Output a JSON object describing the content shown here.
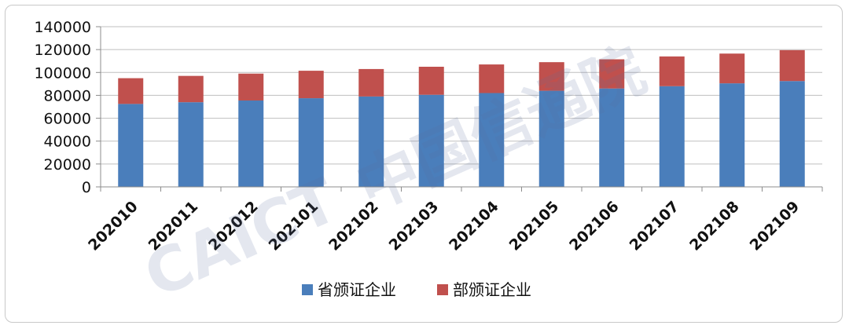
{
  "chart_data": {
    "type": "bar",
    "stacked": true,
    "categories": [
      "202010",
      "202011",
      "202012",
      "202101",
      "202102",
      "202103",
      "202104",
      "202105",
      "202106",
      "202107",
      "202108",
      "202109"
    ],
    "series": [
      {
        "name": "省颁证企业",
        "color": "#4a7ebb",
        "values": [
          72500,
          74000,
          75500,
          77500,
          79000,
          80500,
          82000,
          84000,
          86000,
          88000,
          90500,
          92500
        ]
      },
      {
        "name": "部颁证企业",
        "color": "#c0504d",
        "values": [
          22500,
          23000,
          23500,
          24000,
          24000,
          24500,
          25000,
          25000,
          25500,
          26000,
          26000,
          27000
        ]
      }
    ],
    "yticks": [
      "0",
      "20000",
      "40000",
      "60000",
      "80000",
      "100000",
      "120000",
      "140000"
    ],
    "ylim": [
      0,
      140000
    ],
    "grid": true,
    "legend": "bottom"
  },
  "watermark": {
    "latin": "CAICT",
    "cjk": "中国信通院"
  }
}
